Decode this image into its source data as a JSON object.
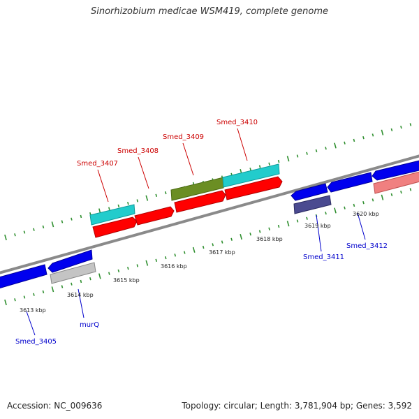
{
  "title": "Sinorhizobium medicae WSM419, complete genome",
  "footer": {
    "accession": "Accession: NC_009636",
    "summary": "Topology: circular; Length: 3,781,904 bp; Genes: 3,592"
  },
  "scale_labels": [
    "3613 kbp",
    "3614 kbp",
    "3615 kbp",
    "3616 kbp",
    "3617 kbp",
    "3618 kbp",
    "3619 kbp",
    "3620 kbp"
  ],
  "gene_labels": {
    "top": [
      "Smed_3407",
      "Smed_3408",
      "Smed_3409",
      "Smed_3410"
    ],
    "bottom": [
      "Smed_3405",
      "murQ",
      "Smed_3411",
      "Smed_3412"
    ]
  },
  "colors": {
    "backbone": "#8a8a8a",
    "tick": "#2f8f2f",
    "red": "#ff0000",
    "blue": "#0000ee",
    "cyan": "#22cccc",
    "olive": "#6b8e23",
    "gray": "#c4c4c4",
    "navy": "#4a4a90",
    "pink": "#f08080",
    "label_red": "#cc0000",
    "label_blue": "#0000cc"
  }
}
